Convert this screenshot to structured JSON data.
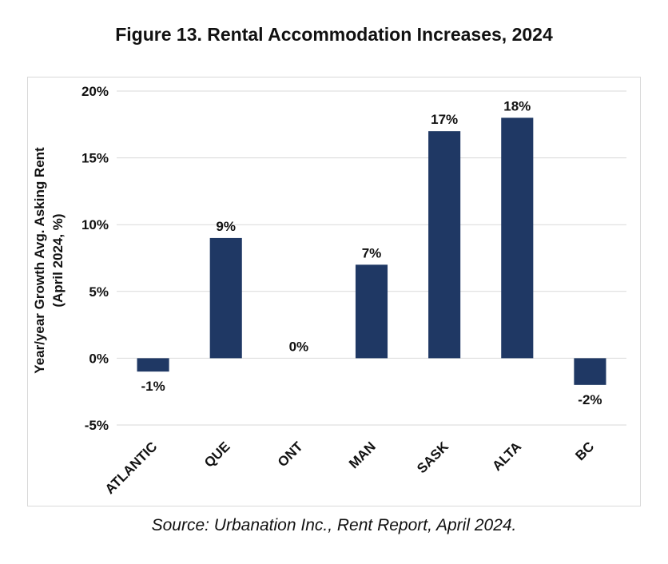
{
  "figure": {
    "title": "Figure 13. Rental Accommodation Increases, 2024",
    "source": "Source: Urbanation Inc., Rent Report, April 2024."
  },
  "chart_data": {
    "type": "bar",
    "title": "Figure 13. Rental Accommodation Increases, 2024",
    "xlabel": "",
    "ylabel_lines": [
      "Year/year Growth Avg. Asking Rent",
      "(April 2024, %)"
    ],
    "categories": [
      "ATLANTIC",
      "QUE",
      "ONT",
      "MAN",
      "SASK",
      "ALTA",
      "BC"
    ],
    "values": [
      -1,
      9,
      0,
      7,
      17,
      18,
      -2
    ],
    "data_labels": [
      "-1%",
      "9%",
      "0%",
      "7%",
      "17%",
      "18%",
      "-2%"
    ],
    "ylim": [
      -5,
      20
    ],
    "yticks": [
      -5,
      0,
      5,
      10,
      15,
      20
    ],
    "ytick_labels": [
      "-5%",
      "0%",
      "5%",
      "10%",
      "15%",
      "20%"
    ],
    "bar_color": "#1f3864",
    "grid": true,
    "legend": "none"
  }
}
